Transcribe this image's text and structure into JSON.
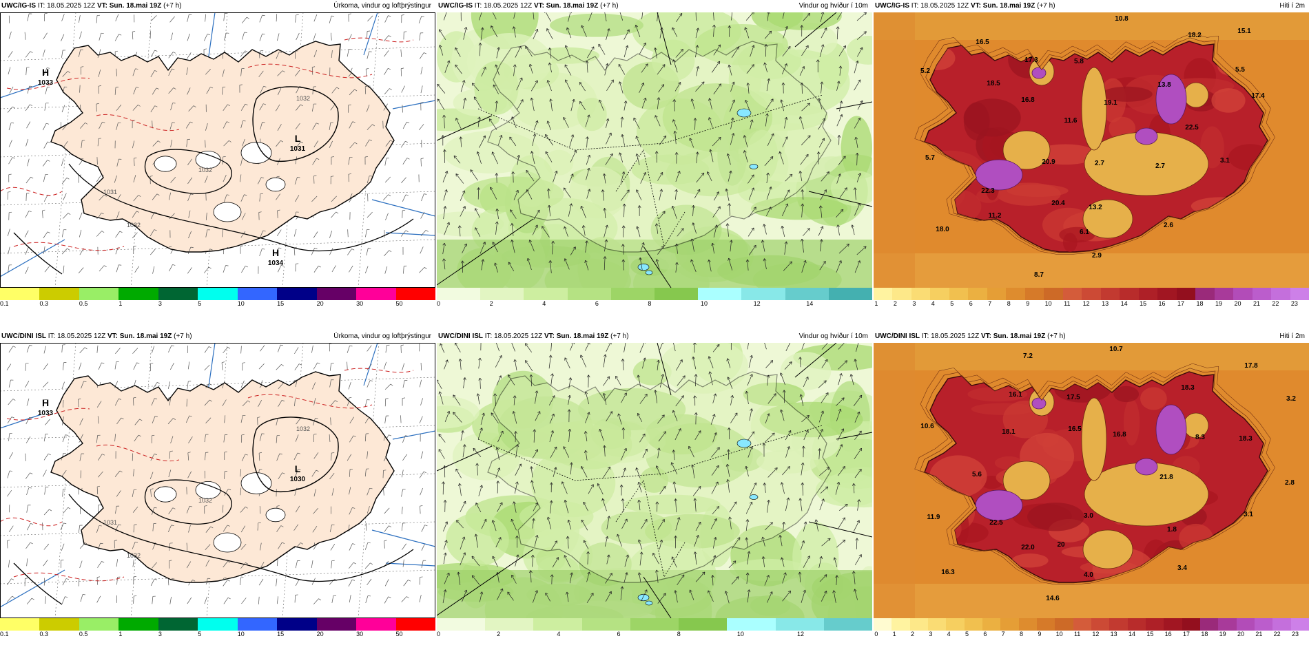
{
  "panels": [
    {
      "kind": "precip",
      "model": "UWC/IG-IS",
      "it_label": "IT:",
      "it_value": "18.05.2025 12Z",
      "vt_label": "VT:",
      "vt_value": "Sun. 18.mai 19Z",
      "lead": "(+7 h)",
      "right_title": "Úrkoma, vindur og loftþrýstingur",
      "pressure": [
        {
          "type": "H",
          "value": "1033"
        },
        {
          "type": "L",
          "value": "1031"
        },
        {
          "type": "H",
          "value": "1034"
        }
      ],
      "isobars": [
        "1032",
        "1032",
        "1032",
        "1031"
      ],
      "colorbar_colors": [
        "#ffff66",
        "#cccc00",
        "#99ee66",
        "#00aa00",
        "#006633",
        "#00ffee",
        "#3366ff",
        "#000088",
        "#660066",
        "#ff0099",
        "#ff0000"
      ],
      "ticks": [
        "0.1",
        "0.3",
        "0.5",
        "1",
        "3",
        "5",
        "10",
        "15",
        "20",
        "30",
        "50"
      ]
    },
    {
      "kind": "wind",
      "model": "UWC/IG-IS",
      "it_label": "IT:",
      "it_value": "18.05.2025 12Z",
      "vt_label": "VT:",
      "vt_value": "Sun. 18.mai 19Z",
      "lead": "(+7 h)",
      "right_title": "Vindur og hviður í 10m",
      "colorbar_colors": [
        "#f2fbe0",
        "#e2f5c2",
        "#cdeea0",
        "#b5e283",
        "#9dd566",
        "#86c84e",
        "#aaffff",
        "#88e8e8",
        "#66cccc",
        "#44b0b0"
      ],
      "ticks": [
        "0",
        "2",
        "4",
        "6",
        "8",
        "10",
        "12",
        "14"
      ]
    },
    {
      "kind": "temp",
      "model": "UWC/IG-IS",
      "it_label": "IT:",
      "it_value": "18.05.2025 12Z",
      "vt_label": "VT:",
      "vt_value": "Sun. 18.mai 19Z",
      "lead": "(+7 h)",
      "right_title": "Hiti í 2m",
      "temps": [
        "10.8",
        "18.2",
        "15.1",
        "16.5",
        "5.2",
        "17.3",
        "5.8",
        "5.5",
        "18.5",
        "13.8",
        "16.8",
        "19.1",
        "17.4",
        "11.6",
        "22.5",
        "5.7",
        "20.9",
        "2.7",
        "2.7",
        "3.1",
        "22.3",
        "20.4",
        "13.2",
        "11.2",
        "18.0",
        "6.1",
        "2.6",
        "2.9",
        "8.7"
      ],
      "colorbar_colors": [
        "#fff3a0",
        "#fde889",
        "#fadc74",
        "#f6cf60",
        "#f1c04f",
        "#ebb041",
        "#e59e36",
        "#de8c2e",
        "#d67a29",
        "#cd6a27",
        "#d45c3a",
        "#cc4a35",
        "#c23a30",
        "#b82c2b",
        "#ae2027",
        "#a11622",
        "#930f1e",
        "#9a2a7a",
        "#a83a9a",
        "#b24cb8",
        "#bb5dcc",
        "#c46fdc",
        "#cd80e8"
      ],
      "ticks": [
        "1",
        "2",
        "3",
        "4",
        "5",
        "6",
        "7",
        "8",
        "9",
        "10",
        "11",
        "12",
        "13",
        "14",
        "15",
        "16",
        "17",
        "18",
        "19",
        "20",
        "21",
        "22",
        "23"
      ]
    },
    {
      "kind": "precip",
      "model": "UWC/DINI ISL",
      "it_label": "IT:",
      "it_value": "18.05.2025 12Z",
      "vt_label": "VT:",
      "vt_value": "Sun. 18.mai 19Z",
      "lead": "(+7 h)",
      "right_title": "Úrkoma, vindur og loftþrýstingur",
      "pressure": [
        {
          "type": "H",
          "value": "1033"
        },
        {
          "type": "L",
          "value": "1030"
        },
        {
          "type": "",
          "value": ""
        }
      ],
      "isobars": [
        "1032",
        "1032",
        "1032",
        "1031"
      ],
      "colorbar_colors": [
        "#ffff66",
        "#cccc00",
        "#99ee66",
        "#00aa00",
        "#006633",
        "#00ffee",
        "#3366ff",
        "#000088",
        "#660066",
        "#ff0099",
        "#ff0000"
      ],
      "ticks": [
        "0.1",
        "0.3",
        "0.5",
        "1",
        "3",
        "5",
        "10",
        "15",
        "20",
        "30",
        "50"
      ]
    },
    {
      "kind": "wind",
      "model": "UWC/DINI ISL",
      "it_label": "IT:",
      "it_value": "18.05.2025 12Z",
      "vt_label": "VT:",
      "vt_value": "Sun. 18.mai 19Z",
      "lead": "(+7 h)",
      "right_title": "Vindur og hviður í 10m",
      "colorbar_colors": [
        "#f2fbe0",
        "#e2f5c2",
        "#cdeea0",
        "#b5e283",
        "#9dd566",
        "#86c84e",
        "#aaffff",
        "#88e8e8",
        "#66cccc"
      ],
      "ticks": [
        "0",
        "2",
        "4",
        "6",
        "8",
        "10",
        "12"
      ]
    },
    {
      "kind": "temp",
      "model": "UWC/DINI ISL",
      "it_label": "IT:",
      "it_value": "18.05.2025 12Z",
      "vt_label": "VT:",
      "vt_value": "Sun. 18.mai 19Z",
      "lead": "(+7 h)",
      "right_title": "Hiti í 2m",
      "temps": [
        "10.7",
        "7.2",
        "17.8",
        "16.1",
        "18.3",
        "3.2",
        "17.5",
        "10.6",
        "16.5",
        "18.1",
        "16.8",
        "8.3",
        "18.3",
        "21.8",
        "2.8",
        "5.6",
        "11.9",
        "22.5",
        "3.0",
        "3.1",
        "22.0",
        "20",
        "1.8",
        "16.3",
        "3.4",
        "4.0",
        "14.6"
      ],
      "colorbar_colors": [
        "#fffbd0",
        "#fff3a0",
        "#fde889",
        "#fadc74",
        "#f6cf60",
        "#f1c04f",
        "#ebb041",
        "#e59e36",
        "#de8c2e",
        "#d67a29",
        "#cd6a27",
        "#d45c3a",
        "#cc4a35",
        "#c23a30",
        "#b82c2b",
        "#ae2027",
        "#a11622",
        "#930f1e",
        "#9a2a7a",
        "#a83a9a",
        "#b24cb8",
        "#bb5dcc",
        "#c46fdc",
        "#cd80e8"
      ],
      "ticks": [
        "0",
        "1",
        "2",
        "3",
        "4",
        "5",
        "6",
        "7",
        "8",
        "9",
        "10",
        "11",
        "12",
        "13",
        "14",
        "15",
        "16",
        "17",
        "18",
        "19",
        "20",
        "21",
        "22",
        "23"
      ]
    }
  ]
}
